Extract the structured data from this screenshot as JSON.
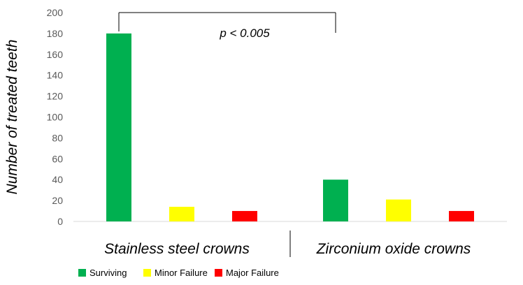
{
  "chart_data": {
    "type": "bar",
    "title": "",
    "ylabel": "Number of treated teeth",
    "xlabel": "",
    "ylim": [
      0,
      200
    ],
    "yticks": [
      0,
      20,
      40,
      60,
      80,
      100,
      120,
      140,
      160,
      180,
      200
    ],
    "grid": false,
    "legend_position": "bottom-left",
    "categories": [
      "Stainless steel crowns",
      "Zirconium oxide crowns"
    ],
    "series": [
      {
        "name": "Surviving",
        "color": "#00b050",
        "values": [
          180,
          40
        ]
      },
      {
        "name": "Minor Failure",
        "color": "#ffff00",
        "values": [
          14,
          21
        ]
      },
      {
        "name": "Major Failure",
        "color": "#ff0000",
        "values": [
          10,
          10
        ]
      }
    ],
    "annotation": {
      "text": "p < 0.005"
    }
  }
}
